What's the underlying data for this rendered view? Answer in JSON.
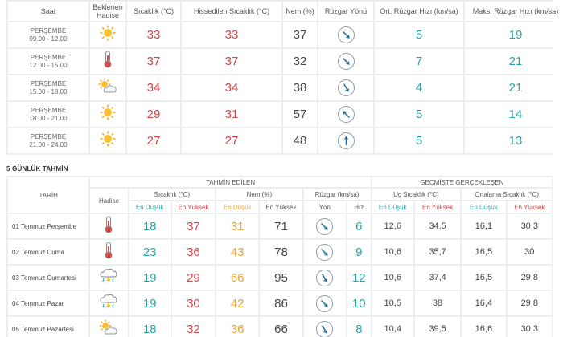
{
  "hourly": {
    "headers": {
      "time": "Saat",
      "event": "Beklenen Hadise",
      "temp": "Sıcaklık (°C)",
      "feels": "Hissedilen Sıcaklık (°C)",
      "humidity": "Nem (%)",
      "wind_dir": "Rüzgar Yönü",
      "avg_wind": "Ort. Rüzgar Hızı (km/sa)",
      "max_wind": "Maks. Rüzgar Hızı (km/sa)"
    },
    "rows": [
      {
        "day": "PERŞEMBE",
        "time": "09.00 - 12.00",
        "icon": "sun-icon",
        "temp": "33",
        "feels": "33",
        "humidity": "37",
        "wind_deg": 315,
        "avg": "5",
        "max": "19"
      },
      {
        "day": "PERŞEMBE",
        "time": "12.00 - 15.00",
        "icon": "thermometer-icon",
        "temp": "37",
        "feels": "37",
        "humidity": "32",
        "wind_deg": 315,
        "avg": "7",
        "max": "21"
      },
      {
        "day": "PERŞEMBE",
        "time": "15.00 - 18.00",
        "icon": "partly-cloudy-icon",
        "temp": "34",
        "feels": "34",
        "humidity": "38",
        "wind_deg": 330,
        "avg": "4",
        "max": "21"
      },
      {
        "day": "PERŞEMBE",
        "time": "18.00 - 21.00",
        "icon": "sun-icon",
        "temp": "29",
        "feels": "31",
        "humidity": "57",
        "wind_deg": 135,
        "avg": "5",
        "max": "14"
      },
      {
        "day": "PERŞEMBE",
        "time": "21.00 - 24.00",
        "icon": "sun-icon",
        "temp": "27",
        "feels": "27",
        "humidity": "48",
        "wind_deg": 180,
        "avg": "5",
        "max": "13"
      }
    ]
  },
  "forecast5": {
    "section_title": "5 GÜNLÜK TAHMİN",
    "headers": {
      "date": "TARİH",
      "predicted": "TAHMİN EDİLEN",
      "past": "GEÇMİŞTE GERÇEKLEŞEN",
      "event": "Hadise",
      "temp": "Sıcaklık (°C)",
      "humidity": "Nem (%)",
      "wind": "Rüzgar (km/sa)",
      "extreme": "Uç Sıcaklık (°C)",
      "avg_temp": "Ortalama Sıcaklık (°C)",
      "low": "En Düşük",
      "high": "En Yüksek",
      "dir": "Yön",
      "speed": "Hız"
    },
    "rows": [
      {
        "date": "01 Temmuz Perşembe",
        "icon": "thermometer-icon",
        "tmin": "18",
        "tmax": "37",
        "hmin": "31",
        "hmax": "71",
        "wind_deg": 315,
        "speed": "6",
        "umin": "12,6",
        "umax": "34,5",
        "amin": "16,1",
        "amax": "30,3"
      },
      {
        "date": "02 Temmuz Cuma",
        "icon": "thermometer-icon",
        "tmin": "23",
        "tmax": "36",
        "hmin": "43",
        "hmax": "78",
        "wind_deg": 315,
        "speed": "9",
        "umin": "10,6",
        "umax": "35,7",
        "amin": "16,5",
        "amax": "30"
      },
      {
        "date": "03 Temmuz Cumartesi",
        "icon": "thunderstorm-icon",
        "tmin": "19",
        "tmax": "29",
        "hmin": "66",
        "hmax": "95",
        "wind_deg": 330,
        "speed": "12",
        "umin": "10,6",
        "umax": "37,4",
        "amin": "16,5",
        "amax": "29,8"
      },
      {
        "date": "04 Temmuz Pazar",
        "icon": "thunderstorm-icon",
        "tmin": "19",
        "tmax": "30",
        "hmin": "42",
        "hmax": "86",
        "wind_deg": 315,
        "speed": "10",
        "umin": "10,5",
        "umax": "38",
        "amin": "16,4",
        "amax": "29,8"
      },
      {
        "date": "05 Temmuz Pazartesi",
        "icon": "partly-cloudy-icon",
        "tmin": "18",
        "tmax": "32",
        "hmin": "36",
        "hmax": "66",
        "wind_deg": 330,
        "speed": "8",
        "umin": "10,4",
        "umax": "39,5",
        "amin": "16,6",
        "amax": "30,3"
      }
    ]
  },
  "colors": {
    "temperature": "#d2444a",
    "wind_speed": "#2aa3a0",
    "humidity_low": "#e8a33a",
    "grid": "#e9eef3"
  }
}
